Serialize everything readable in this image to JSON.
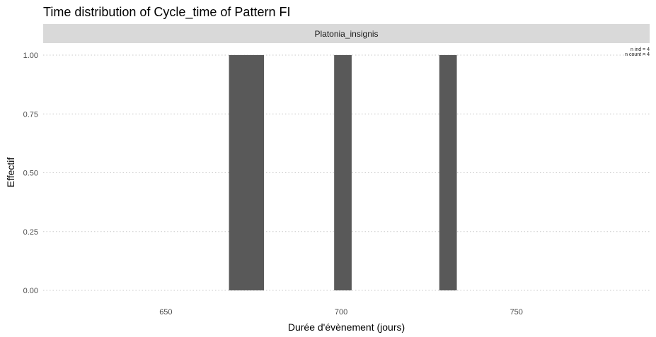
{
  "chart_data": {
    "type": "bar",
    "title": "Time distribution of Cycle_time of Pattern FI",
    "facet_label": "Platonia_insignis",
    "xlabel": "Durée d'évènement (jours)",
    "ylabel": "Effectif",
    "xlim": [
      615,
      788
    ],
    "ylim": [
      0,
      1.0
    ],
    "x_ticks": [
      650,
      700,
      750
    ],
    "x_tick_labels": [
      "650",
      "700",
      "750"
    ],
    "y_ticks": [
      0,
      0.25,
      0.5,
      0.75,
      1.0
    ],
    "y_tick_labels": [
      "0.00",
      "0.25",
      "0.50",
      "0.75",
      "1.00"
    ],
    "grid": true,
    "bars": [
      {
        "x_start": 668,
        "x_end": 678,
        "value": 1
      },
      {
        "x_start": 698,
        "x_end": 703,
        "value": 1
      },
      {
        "x_start": 728,
        "x_end": 733,
        "value": 1
      }
    ],
    "bar_color": "#595959",
    "annotation": {
      "lines": [
        "n ind =  4",
        "n count =  4"
      ]
    }
  },
  "colors": {
    "strip_bg": "#d9d9d9",
    "background": "#ffffff"
  }
}
